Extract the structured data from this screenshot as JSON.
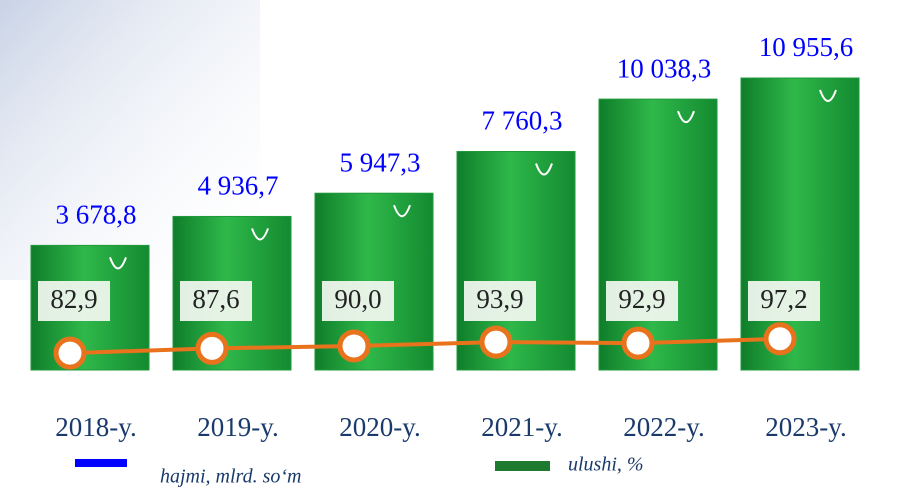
{
  "chart_data": {
    "type": "bar-line",
    "categories": [
      "2018-y.",
      "2019-y.",
      "2020-y.",
      "2021-y.",
      "2022-y.",
      "2023-y."
    ],
    "series": [
      {
        "name": "hajmi, mlrd. so‘m",
        "color": "#0000ff",
        "mark_color": "#1f9a3a",
        "values": [
          3678.8,
          4936.7,
          5947.3,
          7760.3,
          10038.3,
          10955.6
        ],
        "value_labels": [
          "3 678,8",
          "4 936,7",
          "5 947,3",
          "7 760,3",
          "10 038,3",
          "10 955,6"
        ]
      },
      {
        "name": "ulushi, %",
        "color": "#1e7a2e",
        "mark_color": "#e8731c",
        "values": [
          82.9,
          87.6,
          90.0,
          93.9,
          92.9,
          97.2
        ],
        "value_labels": [
          "82,9",
          "87,6",
          "90,0",
          "93,9",
          "92,9",
          "97,2"
        ]
      }
    ]
  }
}
